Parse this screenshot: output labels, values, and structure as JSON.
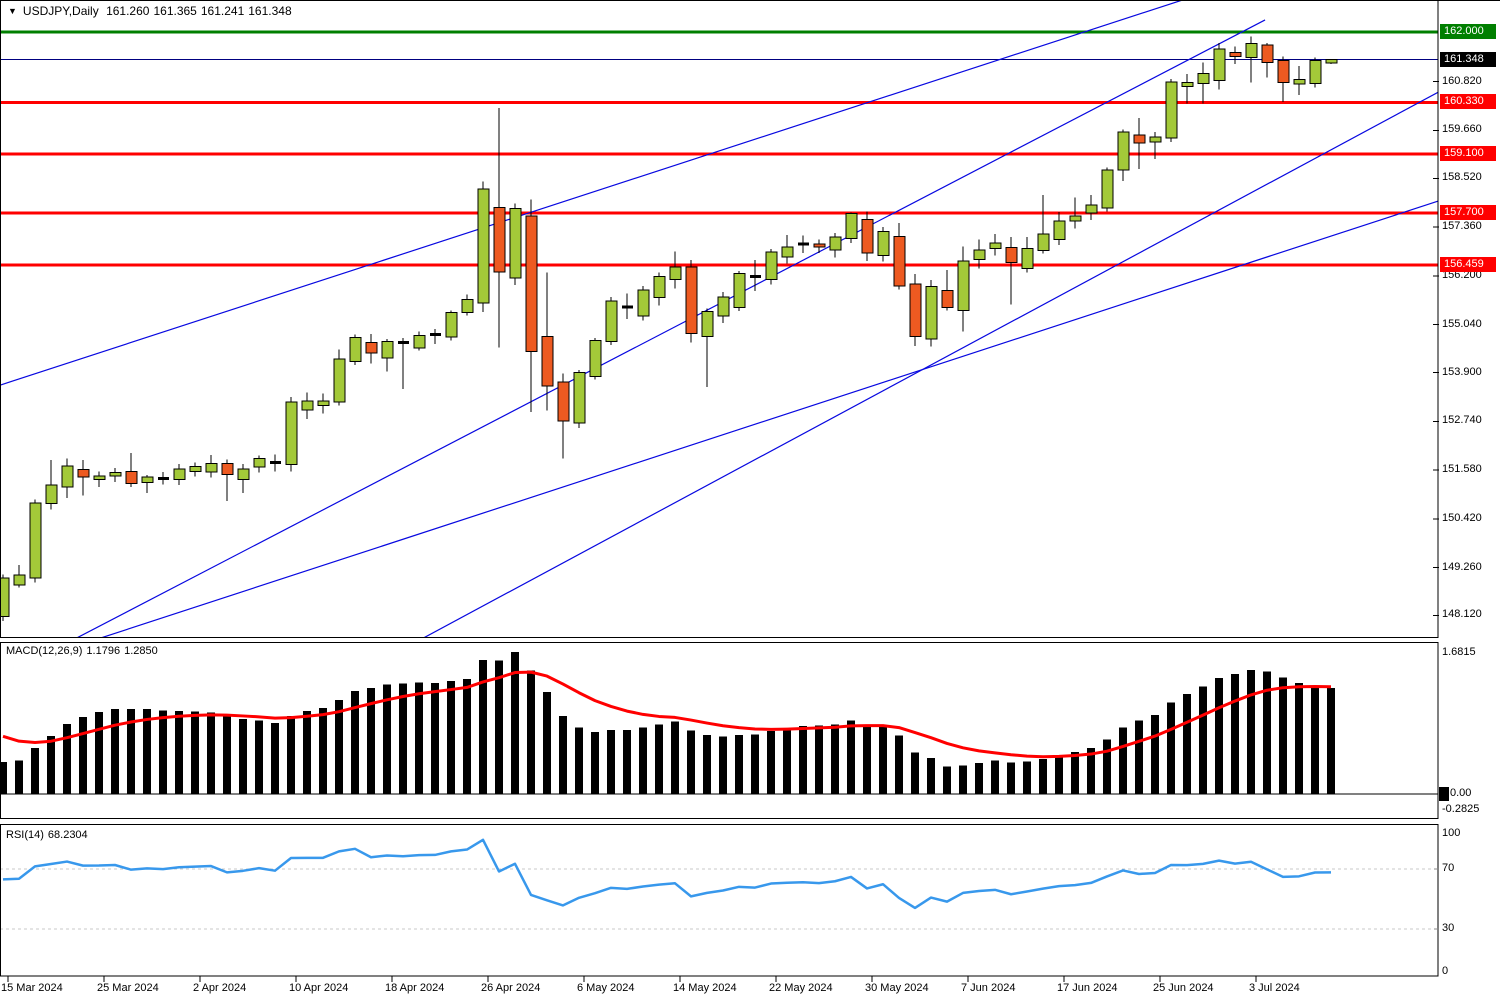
{
  "window": {
    "collapse_icon": "▼",
    "symbol": "USDJPY,Daily",
    "open": "161.260",
    "high": "161.365",
    "low": "161.241",
    "close": "161.348"
  },
  "chart_data": {
    "type": "candlestick",
    "symbol": "USDJPY",
    "timeframe": "Daily",
    "colors": {
      "background": "#FFFFFF",
      "bull_body": "#A3C939",
      "bear_body": "#ED5A21",
      "outline": "#000000",
      "trendline": "#0808E0",
      "current_price_line": "#000080",
      "resistance_line": "#FF0000",
      "target_line": "#007F00",
      "grid_dash": "#C8C8C8"
    },
    "price_axis": {
      "tick_labels": [
        "160.820",
        "159.660",
        "158.520",
        "157.360",
        "156.200",
        "155.040",
        "153.900",
        "152.740",
        "151.580",
        "150.420",
        "149.260",
        "148.120"
      ],
      "markers": [
        {
          "label": "162.000",
          "price": 162.0,
          "color": "#007F00"
        },
        {
          "label": "161.348",
          "price": 161.348,
          "color": "#000000"
        },
        {
          "label": "160.330",
          "price": 160.33,
          "color": "#FF0000"
        },
        {
          "label": "159.100",
          "price": 159.1,
          "color": "#FF0000"
        },
        {
          "label": "157.700",
          "price": 157.7,
          "color": "#FF0000"
        },
        {
          "label": "156.459",
          "price": 156.459,
          "color": "#FF0000"
        }
      ]
    },
    "levels": [
      {
        "price": 162.0,
        "color": "#007F00",
        "width": 3
      },
      {
        "price": 160.33,
        "color": "#FF0000",
        "width": 3
      },
      {
        "price": 159.1,
        "color": "#FF0000",
        "width": 3
      },
      {
        "price": 157.7,
        "color": "#FF0000",
        "width": 3
      },
      {
        "price": 156.459,
        "color": "#FF0000",
        "width": 3
      },
      {
        "price": 161.348,
        "color": "#000080",
        "width": 1
      }
    ],
    "trendlines": [
      {
        "from": {
          "bar": 4.38,
          "price": 147.54
        },
        "to": {
          "bar": 78.88,
          "price": 162.29
        }
      },
      {
        "from": {
          "bar": -0.19,
          "price": 153.6
        },
        "to": {
          "bar": 73.69,
          "price": 162.76
        }
      },
      {
        "from": {
          "bar": 5.75,
          "price": 147.54
        },
        "to": {
          "bar": 89.94,
          "price": 158.01
        }
      },
      {
        "from": {
          "bar": 26.06,
          "price": 147.54
        },
        "to": {
          "bar": 89.94,
          "price": 160.62
        }
      }
    ],
    "x_axis_labels": [
      {
        "bar": 0,
        "text": "15 Mar 2024"
      },
      {
        "bar": 6,
        "text": "25 Mar 2024"
      },
      {
        "bar": 12,
        "text": "2 Apr 2024"
      },
      {
        "bar": 18,
        "text": "10 Apr 2024"
      },
      {
        "bar": 24,
        "text": "18 Apr 2024"
      },
      {
        "bar": 30,
        "text": "26 Apr 2024"
      },
      {
        "bar": 36,
        "text": "6 May 2024"
      },
      {
        "bar": 42,
        "text": "14 May 2024"
      },
      {
        "bar": 48,
        "text": "22 May 2024"
      },
      {
        "bar": 54,
        "text": "30 May 2024"
      },
      {
        "bar": 60,
        "text": "7 Jun 2024"
      },
      {
        "bar": 66,
        "text": "17 Jun 2024"
      },
      {
        "bar": 72,
        "text": "25 Jun 2024"
      },
      {
        "bar": 78,
        "text": "3 Jul 2024"
      }
    ],
    "candles_ohlc": [
      [
        148.1,
        149.1,
        147.99,
        149.01
      ],
      [
        148.84,
        149.32,
        148.78,
        149.08
      ],
      [
        149.01,
        150.88,
        148.9,
        150.8
      ],
      [
        150.78,
        151.82,
        150.64,
        151.22
      ],
      [
        151.18,
        151.86,
        150.92,
        151.68
      ],
      [
        151.59,
        151.82,
        150.98,
        151.42
      ],
      [
        151.35,
        151.55,
        151.18,
        151.44
      ],
      [
        151.44,
        151.63,
        151.3,
        151.52
      ],
      [
        151.54,
        151.99,
        151.18,
        151.26
      ],
      [
        151.28,
        151.46,
        151.03,
        151.42
      ],
      [
        151.4,
        151.53,
        151.24,
        151.38
      ],
      [
        151.36,
        151.72,
        151.23,
        151.61
      ],
      [
        151.54,
        151.76,
        151.43,
        151.67
      ],
      [
        151.53,
        151.94,
        151.4,
        151.74
      ],
      [
        151.74,
        151.83,
        150.84,
        151.47
      ],
      [
        151.36,
        151.72,
        151.03,
        151.61
      ],
      [
        151.65,
        151.93,
        151.52,
        151.86
      ],
      [
        151.76,
        151.95,
        151.54,
        151.76
      ],
      [
        151.71,
        153.32,
        151.55,
        153.2
      ],
      [
        153.01,
        153.42,
        152.8,
        153.22
      ],
      [
        153.12,
        153.4,
        152.92,
        153.22
      ],
      [
        153.2,
        154.45,
        153.12,
        154.22
      ],
      [
        154.16,
        154.8,
        154.08,
        154.73
      ],
      [
        154.61,
        154.82,
        154.12,
        154.37
      ],
      [
        154.25,
        154.7,
        153.92,
        154.64
      ],
      [
        154.61,
        154.72,
        153.51,
        154.61
      ],
      [
        154.49,
        154.88,
        154.42,
        154.78
      ],
      [
        154.82,
        154.94,
        154.58,
        154.8
      ],
      [
        154.74,
        155.38,
        154.66,
        155.33
      ],
      [
        155.33,
        155.76,
        155.26,
        155.64
      ],
      [
        155.55,
        158.44,
        155.34,
        158.27
      ],
      [
        157.83,
        160.2,
        154.5,
        156.29
      ],
      [
        156.15,
        157.92,
        155.98,
        157.8
      ],
      [
        157.62,
        158.02,
        152.96,
        154.4
      ],
      [
        154.76,
        156.28,
        153.0,
        153.58
      ],
      [
        153.67,
        153.88,
        151.86,
        152.75
      ],
      [
        152.7,
        153.96,
        152.58,
        153.9
      ],
      [
        153.81,
        154.72,
        153.74,
        154.66
      ],
      [
        154.64,
        155.7,
        154.55,
        155.6
      ],
      [
        155.48,
        155.78,
        155.17,
        155.46
      ],
      [
        155.24,
        155.96,
        155.14,
        155.87
      ],
      [
        155.68,
        156.28,
        155.5,
        156.18
      ],
      [
        156.11,
        156.78,
        155.9,
        156.41
      ],
      [
        156.41,
        156.58,
        154.62,
        154.83
      ],
      [
        154.76,
        155.42,
        153.56,
        155.35
      ],
      [
        155.24,
        155.82,
        155.08,
        155.7
      ],
      [
        155.45,
        156.32,
        155.36,
        156.26
      ],
      [
        156.2,
        156.58,
        155.84,
        156.18
      ],
      [
        156.11,
        156.84,
        156.0,
        156.77
      ],
      [
        156.65,
        157.17,
        156.5,
        156.89
      ],
      [
        156.94,
        157.16,
        156.74,
        156.96
      ],
      [
        156.96,
        157.06,
        156.74,
        156.89
      ],
      [
        156.82,
        157.22,
        156.64,
        157.12
      ],
      [
        157.09,
        157.71,
        156.98,
        157.68
      ],
      [
        157.54,
        157.73,
        156.56,
        156.75
      ],
      [
        156.68,
        157.36,
        156.54,
        157.26
      ],
      [
        157.14,
        157.46,
        155.88,
        155.96
      ],
      [
        156.01,
        156.24,
        154.53,
        154.76
      ],
      [
        154.7,
        156.1,
        154.52,
        155.95
      ],
      [
        155.85,
        156.34,
        155.38,
        155.45
      ],
      [
        155.38,
        156.9,
        154.88,
        156.56
      ],
      [
        156.59,
        157.06,
        156.38,
        156.82
      ],
      [
        156.85,
        157.2,
        156.68,
        156.98
      ],
      [
        156.87,
        157.12,
        155.52,
        156.52
      ],
      [
        156.38,
        157.12,
        156.28,
        156.85
      ],
      [
        156.8,
        158.12,
        156.73,
        157.2
      ],
      [
        157.06,
        157.72,
        156.93,
        157.51
      ],
      [
        157.51,
        158.06,
        157.33,
        157.63
      ],
      [
        157.7,
        158.12,
        157.53,
        157.89
      ],
      [
        157.82,
        158.78,
        157.73,
        158.72
      ],
      [
        158.72,
        159.68,
        158.46,
        159.62
      ],
      [
        159.55,
        159.96,
        158.74,
        159.36
      ],
      [
        159.38,
        159.62,
        158.98,
        159.5
      ],
      [
        159.48,
        160.88,
        159.38,
        160.81
      ],
      [
        160.7,
        161.0,
        160.3,
        160.8
      ],
      [
        160.78,
        161.28,
        160.3,
        161.02
      ],
      [
        160.85,
        161.74,
        160.63,
        161.6
      ],
      [
        161.52,
        161.66,
        161.24,
        161.42
      ],
      [
        161.4,
        161.9,
        160.8,
        161.73
      ],
      [
        161.69,
        161.74,
        160.92,
        161.28
      ],
      [
        161.33,
        161.42,
        160.34,
        160.8
      ],
      [
        160.76,
        161.19,
        160.5,
        160.87
      ],
      [
        160.78,
        161.4,
        160.68,
        161.33
      ],
      [
        161.26,
        161.365,
        161.241,
        161.348
      ]
    ],
    "indicators": {
      "macd": {
        "name": "MACD(12,26,9)",
        "main_value": "1.1796",
        "signal_value": "1.2850",
        "axis_max": "1.6815",
        "axis_zero": "0.00",
        "axis_min": "-0.2825",
        "histogram_color": "#000000",
        "signal_color": "#FF0000"
      },
      "rsi": {
        "name": "RSI(14)",
        "value": "68.2304",
        "axis_labels": [
          "100",
          "70",
          "30",
          "0"
        ],
        "axis_values": [
          100,
          70,
          30,
          0
        ],
        "levels": [
          70,
          30
        ],
        "line_color": "#3898EC"
      }
    }
  }
}
